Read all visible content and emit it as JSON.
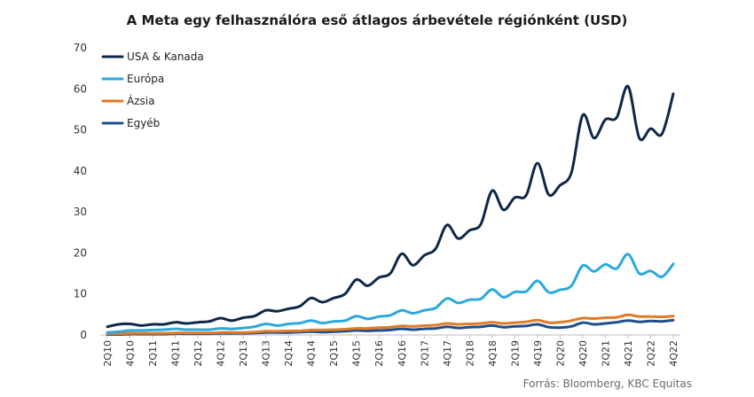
{
  "title": "A Meta egy felhasználóra eső átlagos árbevétele régiónként (USD)",
  "source": "Forrás: Bloomberg, KBC Equitas",
  "chart_data": {
    "type": "line",
    "title": "A Meta egy felhasználóra eső átlagos árbevétele régiónként (USD)",
    "xlabel": "",
    "ylabel": "",
    "ylim": [
      0,
      70
    ],
    "yticks": [
      0,
      10,
      20,
      30,
      40,
      50,
      60,
      70
    ],
    "grid": false,
    "legend_position": "top-left",
    "x": [
      "2Q10",
      "3Q10",
      "4Q10",
      "1Q11",
      "2Q11",
      "3Q11",
      "4Q11",
      "1Q12",
      "2Q12",
      "3Q12",
      "4Q12",
      "1Q13",
      "2Q13",
      "3Q13",
      "4Q13",
      "1Q14",
      "2Q14",
      "3Q14",
      "4Q14",
      "1Q15",
      "2Q15",
      "3Q15",
      "4Q15",
      "1Q16",
      "2Q16",
      "3Q16",
      "4Q16",
      "1Q17",
      "2Q17",
      "3Q17",
      "4Q17",
      "1Q18",
      "2Q18",
      "3Q18",
      "4Q18",
      "1Q19",
      "2Q19",
      "3Q19",
      "4Q19",
      "1Q20",
      "2Q20",
      "3Q20",
      "4Q20",
      "1Q21",
      "2Q21",
      "3Q21",
      "4Q21",
      "1Q22",
      "2Q22",
      "3Q22",
      "4Q22"
    ],
    "x_tick_labels": [
      "2Q10",
      "4Q10",
      "2Q11",
      "4Q11",
      "2Q12",
      "4Q12",
      "2Q13",
      "4Q13",
      "2Q14",
      "4Q14",
      "2Q15",
      "4Q15",
      "2Q16",
      "4Q16",
      "2Q17",
      "4Q17",
      "2Q18",
      "4Q18",
      "2Q19",
      "4Q19",
      "2Q20",
      "4Q20",
      "2Q21",
      "4Q21",
      "2Q22",
      "4Q22"
    ],
    "series": [
      {
        "name": "USA & Kanada",
        "color": "#0f2847",
        "values": [
          2.0,
          2.6,
          2.7,
          2.3,
          2.6,
          2.6,
          3.1,
          2.8,
          3.1,
          3.3,
          4.1,
          3.5,
          4.2,
          4.6,
          6.0,
          5.8,
          6.4,
          7.0,
          9.0,
          8.0,
          9.0,
          10.0,
          13.5,
          12.0,
          14.0,
          15.0,
          19.8,
          17.0,
          19.4,
          21.0,
          26.8,
          23.5,
          25.5,
          27.0,
          35.2,
          30.5,
          33.5,
          34.0,
          41.9,
          34.2,
          36.5,
          39.6,
          53.6,
          48.0,
          52.5,
          53.0,
          60.6,
          48.0,
          50.3,
          49.0,
          58.8
        ]
      },
      {
        "name": "Európa",
        "color": "#2aa9df",
        "values": [
          0.6,
          0.8,
          1.1,
          1.1,
          1.2,
          1.3,
          1.5,
          1.3,
          1.3,
          1.3,
          1.6,
          1.5,
          1.7,
          2.0,
          2.7,
          2.3,
          2.7,
          2.9,
          3.5,
          2.9,
          3.3,
          3.5,
          4.6,
          3.9,
          4.5,
          4.8,
          6.0,
          5.3,
          6.0,
          6.6,
          8.9,
          7.8,
          8.6,
          8.8,
          11.1,
          9.2,
          10.5,
          10.6,
          13.2,
          10.4,
          11.0,
          12.0,
          16.9,
          15.5,
          17.2,
          16.2,
          19.7,
          15.0,
          15.6,
          14.2,
          17.3
        ]
      },
      {
        "name": "Ázsia",
        "color": "#e07b26",
        "values": [
          0.3,
          0.3,
          0.4,
          0.4,
          0.4,
          0.4,
          0.5,
          0.5,
          0.5,
          0.5,
          0.6,
          0.6,
          0.6,
          0.7,
          0.9,
          0.9,
          1.0,
          1.0,
          1.2,
          1.2,
          1.3,
          1.4,
          1.6,
          1.6,
          1.8,
          1.9,
          2.2,
          2.1,
          2.3,
          2.4,
          2.8,
          2.6,
          2.7,
          2.8,
          3.1,
          2.8,
          3.0,
          3.2,
          3.6,
          3.0,
          3.1,
          3.5,
          4.1,
          4.0,
          4.2,
          4.3,
          4.9,
          4.5,
          4.5,
          4.4,
          4.6
        ]
      },
      {
        "name": "Egyéb",
        "color": "#1e4f8a",
        "values": [
          0.1,
          0.1,
          0.2,
          0.2,
          0.2,
          0.2,
          0.3,
          0.3,
          0.3,
          0.3,
          0.4,
          0.4,
          0.4,
          0.5,
          0.6,
          0.6,
          0.6,
          0.7,
          0.8,
          0.7,
          0.8,
          0.9,
          1.1,
          1.0,
          1.1,
          1.2,
          1.5,
          1.3,
          1.5,
          1.6,
          2.0,
          1.7,
          1.9,
          2.0,
          2.3,
          1.9,
          2.1,
          2.2,
          2.6,
          1.9,
          1.8,
          2.1,
          3.0,
          2.6,
          2.8,
          3.1,
          3.5,
          3.2,
          3.4,
          3.3,
          3.6
        ]
      }
    ]
  }
}
